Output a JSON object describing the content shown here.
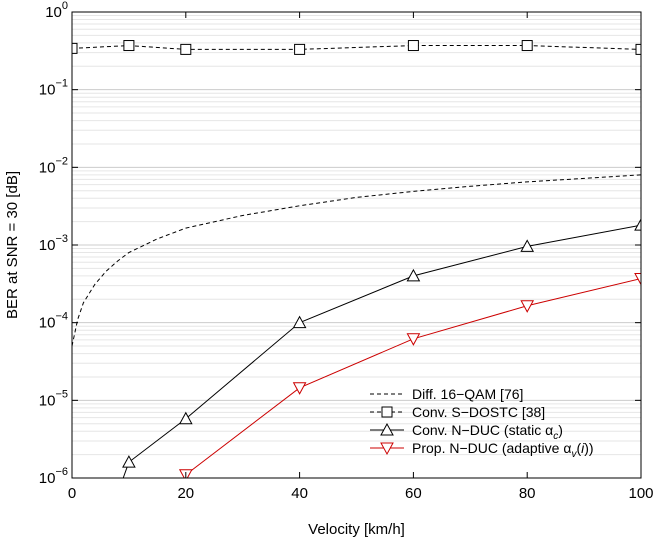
{
  "chart_data": {
    "type": "line",
    "xlabel": "Velocity [km/h]",
    "ylabel": "BER at SNR = 30 [dB]",
    "xlim": [
      0,
      100
    ],
    "ylim": [
      1e-06,
      1
    ],
    "y_scale": "log",
    "x_ticks": [
      0,
      20,
      40,
      60,
      80,
      100
    ],
    "y_ticks": [
      {
        "value": 1e-06,
        "base": "10",
        "exp": "−6"
      },
      {
        "value": 1e-05,
        "base": "10",
        "exp": "−5"
      },
      {
        "value": 0.0001,
        "base": "10",
        "exp": "−4"
      },
      {
        "value": 0.001,
        "base": "10",
        "exp": "−3"
      },
      {
        "value": 0.01,
        "base": "10",
        "exp": "−2"
      },
      {
        "value": 0.1,
        "base": "10",
        "exp": "−1"
      },
      {
        "value": 1,
        "base": "10",
        "exp": "0"
      }
    ],
    "grid": true,
    "legend_position": "bottom-right",
    "series": [
      {
        "name": "Diff. 16−QAM [76]",
        "color": "#000000",
        "dash": "dashed",
        "marker": "none",
        "x": [
          0,
          1,
          2,
          4,
          6,
          8,
          10,
          15,
          20,
          30,
          40,
          50,
          60,
          70,
          80,
          90,
          100
        ],
        "y": [
          5e-05,
          0.00011,
          0.00018,
          0.00031,
          0.00046,
          0.00062,
          0.0008,
          0.0012,
          0.00165,
          0.0024,
          0.0032,
          0.0041,
          0.0049,
          0.0057,
          0.0065,
          0.0072,
          0.008
        ]
      },
      {
        "name": "Conv. S−DOSTC [38]",
        "color": "#000000",
        "dash": "dashed",
        "marker": "square",
        "x": [
          0,
          10,
          20,
          40,
          60,
          80,
          100
        ],
        "y": [
          0.34,
          0.37,
          0.33,
          0.33,
          0.37,
          0.37,
          0.33
        ]
      },
      {
        "name": "Conv. N−DUC (static αc)",
        "color": "#000000",
        "dash": "solid",
        "marker": "triangle-up",
        "x": [
          9,
          10,
          20,
          40,
          60,
          80,
          100
        ],
        "y": [
          1e-06,
          1.6e-06,
          5.8e-06,
          0.0001,
          0.0004,
          0.00096,
          0.0018
        ]
      },
      {
        "name": "Prop. N−DUC (adaptive αv(i))",
        "color": "#cc0000",
        "dash": "solid",
        "marker": "triangle-down",
        "x": [
          20,
          40,
          60,
          80,
          100
        ],
        "y": [
          1.1e-06,
          1.45e-05,
          6.2e-05,
          0.000165,
          0.00037
        ]
      }
    ],
    "legend_labels": [
      {
        "main": "Diff. 16−QAM [76]"
      },
      {
        "main": "Conv. S−DOSTC [38]"
      },
      {
        "pre": "Conv. N−DUC (static α",
        "sub": "c",
        "post": ")"
      },
      {
        "pre": "Prop. N−DUC (adaptive α",
        "sub": "v",
        "post": "(",
        "ital": "i",
        "post2": "))"
      }
    ]
  }
}
